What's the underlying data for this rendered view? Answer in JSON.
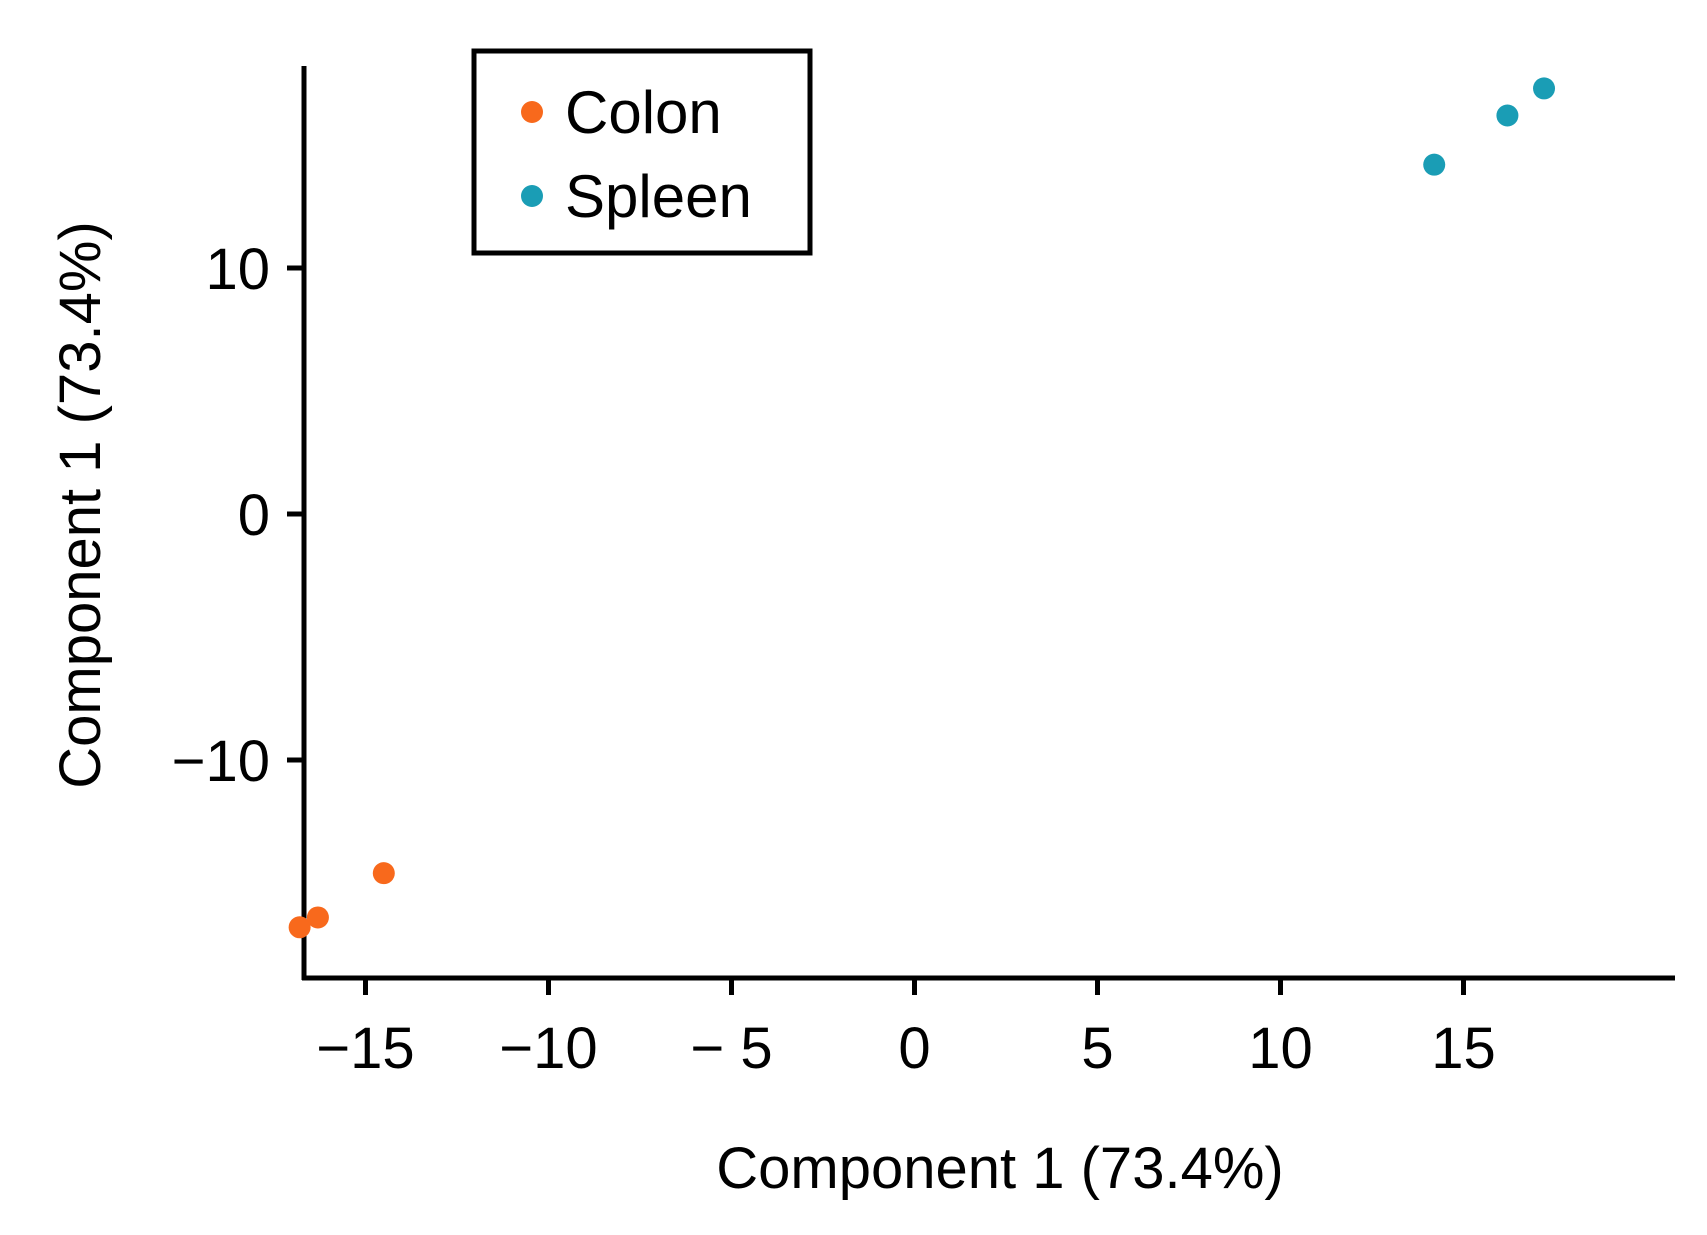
{
  "chart_data": {
    "type": "scatter",
    "title": "",
    "xlabel": "Component 1 (73.4%)",
    "ylabel": "Component 1 (73.4%)",
    "xlim": [
      -19,
      18.5
    ],
    "ylim": [
      -19,
      18.5
    ],
    "xticks": [
      {
        "value": -15,
        "label": "−15"
      },
      {
        "value": -10,
        "label": "−10"
      },
      {
        "value": -5,
        "label": "− 5"
      },
      {
        "value": 0,
        "label": "0"
      },
      {
        "value": 5,
        "label": "5"
      },
      {
        "value": 10,
        "label": "10"
      },
      {
        "value": 15,
        "label": "15"
      }
    ],
    "yticks": [
      {
        "value": -10,
        "label": "−10"
      },
      {
        "value": 0,
        "label": "0"
      },
      {
        "value": 10,
        "label": "10"
      }
    ],
    "legend_position": "top-left",
    "grid": false,
    "series": [
      {
        "name": "Colon",
        "color": "#F8691C",
        "points": [
          {
            "x": -16.8,
            "y": -16.8
          },
          {
            "x": -16.3,
            "y": -16.4
          },
          {
            "x": -14.5,
            "y": -14.6
          }
        ]
      },
      {
        "name": "Spleen",
        "color": "#1A9DB5",
        "points": [
          {
            "x": 14.2,
            "y": 14.2
          },
          {
            "x": 16.2,
            "y": 16.2
          },
          {
            "x": 17.2,
            "y": 17.3
          }
        ]
      }
    ]
  }
}
